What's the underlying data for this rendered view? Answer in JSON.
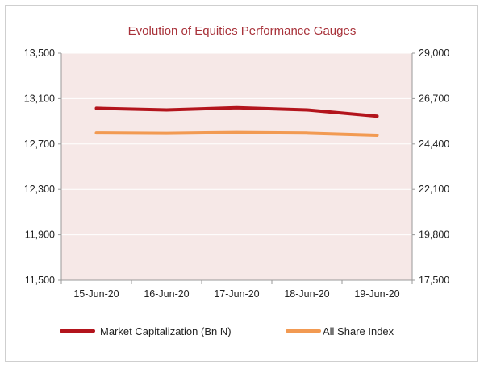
{
  "chart_data": {
    "type": "line",
    "title": "Evolution of Equities Performance Gauges",
    "categories": [
      "15-Jun-20",
      "16-Jun-20",
      "17-Jun-20",
      "18-Jun-20",
      "19-Jun-20"
    ],
    "y_left": {
      "ylim": [
        11500,
        13500
      ],
      "ticks": [
        "13,500",
        "13,100",
        "12,700",
        "12,300",
        "11,900",
        "11,500"
      ]
    },
    "y_right": {
      "ylim": [
        17500,
        29000
      ],
      "ticks": [
        "29,000",
        "26,700",
        "24,400",
        "22,100",
        "19,800",
        "17,500"
      ]
    },
    "series": [
      {
        "name": "Market Capitalization (Bn N)",
        "axis": "left",
        "color": "#b3141c",
        "values": [
          13015,
          13000,
          13020,
          13000,
          12945
        ]
      },
      {
        "name": "All Share Index",
        "axis": "right",
        "color": "#f29a52",
        "values": [
          24960,
          24940,
          24980,
          24950,
          24840
        ]
      }
    ],
    "plot_background": "#f6e8e7",
    "grid": true,
    "legend_position": "bottom"
  }
}
